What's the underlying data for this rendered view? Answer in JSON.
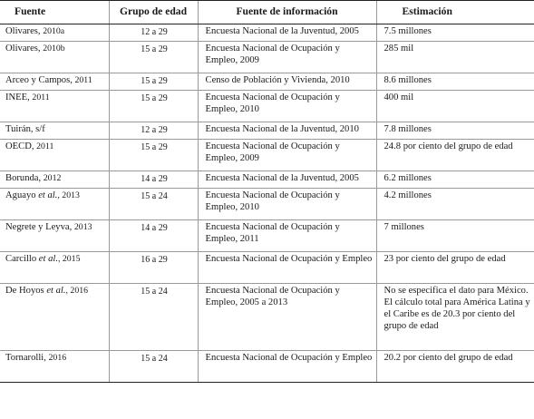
{
  "header": {
    "col1": "Fuente",
    "col2": "Grupo de edad",
    "col3": "Fuente de información",
    "col4": "Estimación"
  },
  "rows": [
    {
      "src_main": "Olivares, ",
      "src_italic": "",
      "src_year": "2010a",
      "age": "12 a 29",
      "info": "Encuesta Nacional de la Juventud, 2005",
      "est": "7.5 millones"
    },
    {
      "src_main": "Olivares, ",
      "src_italic": "",
      "src_year": "2010b",
      "age": "15 a 29",
      "info": "Encuesta Nacional de Ocupación y Empleo, 2009",
      "est": "285 mil"
    },
    {
      "src_main": "Arceo y Campos, ",
      "src_italic": "",
      "src_year": "2011",
      "age": "15 a 29",
      "info": "Censo de Población y Vivienda, 2010",
      "est": "8.6 millones"
    },
    {
      "src_main": "INEE, ",
      "src_italic": "",
      "src_year": "2011",
      "age": "15 a 29",
      "info": "Encuesta Nacional de Ocupación y Empleo, 2010",
      "est": "400 mil"
    },
    {
      "src_main": "Tuirán, s/f",
      "src_italic": "",
      "src_year": "",
      "age": "12 a 29",
      "info": "Encuesta Nacional de la Juventud, 2010",
      "est": "7.8 millones"
    },
    {
      "src_main": "OECD, ",
      "src_italic": "",
      "src_year": "2011",
      "age": "15 a 29",
      "info": "Encuesta Nacional de Ocupación y Empleo, 2009",
      "est": "24.8 por ciento del grupo de edad"
    },
    {
      "src_main": "Borunda, ",
      "src_italic": "",
      "src_year": "2012",
      "age": "14 a 29",
      "info": "Encuesta Nacional de la Juventud, 2005",
      "est": "6.2 millones"
    },
    {
      "src_main": "Aguayo ",
      "src_italic": "et al.",
      "src_year": ", 2013",
      "age": "15 a 24",
      "info": "Encuesta Nacional de Ocupación y Empleo, 2010",
      "est": "4.2 millones"
    },
    {
      "src_main": "Negrete y Leyva, ",
      "src_italic": "",
      "src_year": "2013",
      "age": "14 a 29",
      "info": "Encuesta Nacional de Ocupación y Empleo, 2011",
      "est": "7 millones"
    },
    {
      "src_main": "Carcillo ",
      "src_italic": "et al.",
      "src_year": ", 2015",
      "age": "16 a 29",
      "info": "Encuesta Nacional de Ocupación y Empleo",
      "est": "23 por ciento del grupo de edad"
    },
    {
      "src_main": "De Hoyos ",
      "src_italic": "et al.",
      "src_year": ", 2016",
      "age": "15 a 24",
      "info": "Encuesta Nacional de Ocupación y Empleo, 2005 a 2013",
      "est": "No se especifica el dato para México. El cálculo total para América Latina y el Caribe es de 20.3 por ciento del grupo de edad"
    },
    {
      "src_main": "Tornarolli, ",
      "src_italic": "",
      "src_year": "2016",
      "age": "15 a 24",
      "info": "Encuesta Nacional de Ocupación y Empleo",
      "est": "20.2 por ciento del grupo de edad"
    }
  ]
}
